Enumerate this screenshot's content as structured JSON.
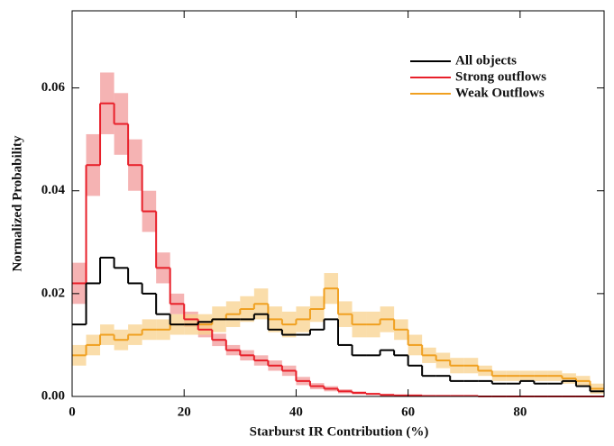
{
  "chart_data": {
    "type": "step-histogram",
    "xlabel": "Starburst IR Contribution (%)",
    "ylabel": "Normalized Probability",
    "xlim": [
      0,
      95
    ],
    "ylim": [
      0,
      0.075
    ],
    "xticks": [
      0,
      20,
      40,
      60,
      80
    ],
    "yticks": [
      {
        "value": 0,
        "label": "0.00"
      },
      {
        "value": 0.02,
        "label": "0.02"
      },
      {
        "value": 0.04,
        "label": "0.04"
      },
      {
        "value": 0.06,
        "label": "0.06"
      }
    ],
    "legend": "upper right",
    "bins": [
      0,
      2.5,
      5,
      7.5,
      10,
      12.5,
      15,
      17.5,
      20,
      22.5,
      25,
      27.5,
      30,
      32.5,
      35,
      37.5,
      40,
      42.5,
      45,
      47.5,
      50,
      52.5,
      55,
      57.5,
      60,
      62.5,
      65,
      67.5,
      70,
      72.5,
      75,
      77.5,
      80,
      82.5,
      85,
      87.5,
      90,
      92.5,
      95
    ],
    "series": [
      {
        "name": "All objects",
        "color": "#000000",
        "values": [
          0.014,
          0.022,
          0.027,
          0.025,
          0.022,
          0.02,
          0.016,
          0.014,
          0.014,
          0.0145,
          0.015,
          0.015,
          0.015,
          0.016,
          0.013,
          0.012,
          0.012,
          0.013,
          0.015,
          0.01,
          0.008,
          0.008,
          0.009,
          0.008,
          0.006,
          0.004,
          0.004,
          0.003,
          0.003,
          0.003,
          0.0025,
          0.0025,
          0.003,
          0.0025,
          0.0025,
          0.003,
          0.002,
          0.001
        ]
      },
      {
        "name": "Strong outflows",
        "color": "#e8202a",
        "band_color": "#f29a9a",
        "values": [
          0.022,
          0.045,
          0.057,
          0.053,
          0.045,
          0.036,
          0.025,
          0.018,
          0.015,
          0.013,
          0.011,
          0.009,
          0.008,
          0.007,
          0.006,
          0.005,
          0.003,
          0.002,
          0.0015,
          0.001,
          0.0007,
          0.0005,
          0.0003,
          0.0002,
          0.0002,
          0.0001,
          0.0001,
          0.0001,
          0.0001,
          0,
          0,
          0,
          0,
          0,
          0,
          0,
          0,
          0
        ],
        "errors": [
          0.004,
          0.006,
          0.006,
          0.006,
          0.005,
          0.004,
          0.003,
          0.002,
          0.0015,
          0.0015,
          0.0012,
          0.001,
          0.001,
          0.001,
          0.001,
          0.001,
          0.0008,
          0.0006,
          0.0005,
          0.0004,
          0.0003,
          0.0002,
          0.0002,
          0.0001,
          0.0001,
          0.0001,
          0.0001,
          0.0001,
          0.0001,
          0,
          0,
          0,
          0,
          0,
          0,
          0,
          0,
          0
        ]
      },
      {
        "name": "Weak Outflows",
        "color": "#f0a020",
        "band_color": "#f8d28e",
        "values": [
          0.008,
          0.01,
          0.012,
          0.011,
          0.012,
          0.013,
          0.013,
          0.014,
          0.014,
          0.014,
          0.015,
          0.016,
          0.017,
          0.018,
          0.015,
          0.014,
          0.015,
          0.017,
          0.021,
          0.016,
          0.014,
          0.014,
          0.015,
          0.013,
          0.01,
          0.008,
          0.007,
          0.006,
          0.006,
          0.005,
          0.004,
          0.004,
          0.004,
          0.004,
          0.004,
          0.0035,
          0.003,
          0.0015
        ],
        "errors": [
          0.002,
          0.002,
          0.002,
          0.002,
          0.002,
          0.002,
          0.002,
          0.002,
          0.002,
          0.002,
          0.0025,
          0.0025,
          0.0025,
          0.003,
          0.0025,
          0.0025,
          0.0025,
          0.0025,
          0.003,
          0.0025,
          0.0025,
          0.0025,
          0.0025,
          0.002,
          0.002,
          0.0015,
          0.0015,
          0.0015,
          0.0015,
          0.001,
          0.001,
          0.001,
          0.001,
          0.001,
          0.001,
          0.001,
          0.001,
          0.001
        ]
      }
    ]
  }
}
